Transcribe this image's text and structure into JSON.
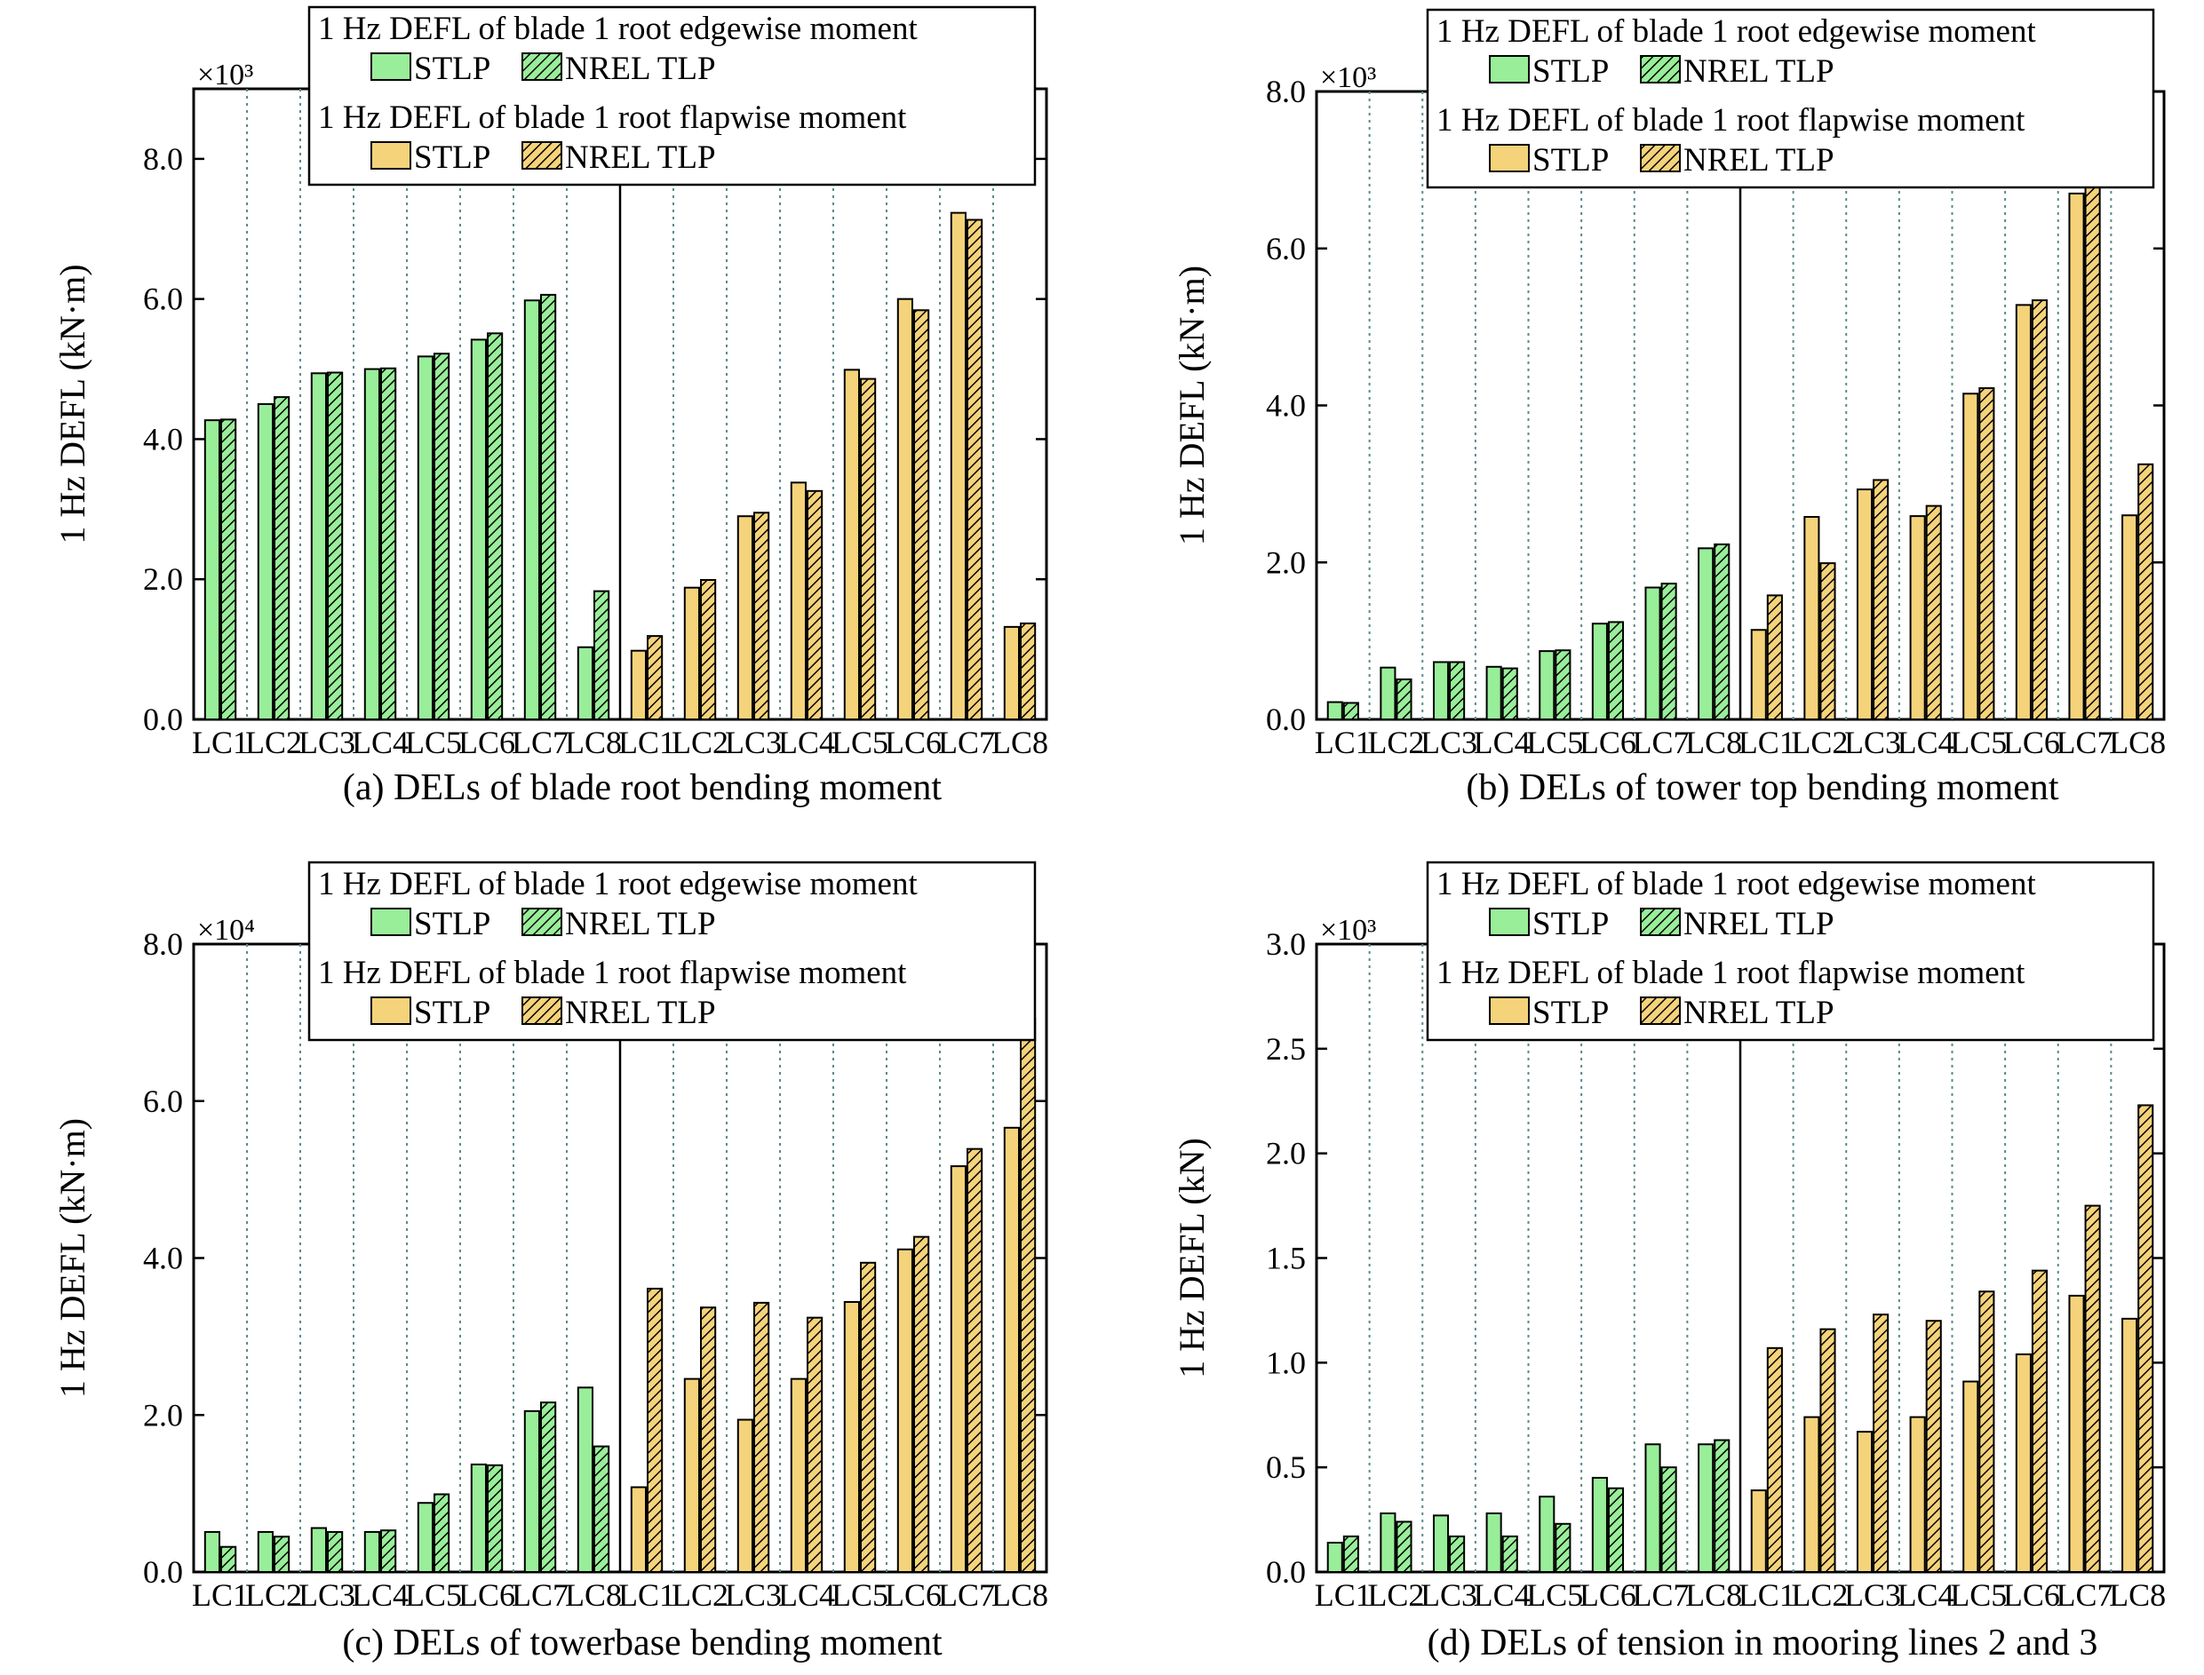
{
  "colors": {
    "stlp_edge": "#99ee99",
    "stlp_flap": "#f5d37a",
    "outline": "#000000",
    "gridline": "#5a8a8a"
  },
  "legend": {
    "edge_title": "1 Hz DEFL of blade 1 root edgewise moment",
    "flap_title": "1 Hz DEFL of blade 1 root flapwise moment",
    "stlp": "STLP",
    "nrel": "NREL TLP"
  },
  "chart_data": [
    {
      "type": "bar",
      "caption": "(a)  DELs of blade root bending moment",
      "ylabel": "1 Hz DEFL (kN·m)",
      "multiplier": "×10³",
      "ylim": [
        0,
        9.0
      ],
      "yticks": [
        "0.0",
        "2.0",
        "4.0",
        "6.0",
        "8.0"
      ],
      "categories": [
        "LC1",
        "LC2",
        "LC3",
        "LC4",
        "LC5",
        "LC6",
        "LC7",
        "LC8",
        "LC1",
        "LC2",
        "LC3",
        "LC4",
        "LC5",
        "LC6",
        "LC7",
        "LC8"
      ],
      "series": [
        {
          "name": "STLP",
          "values": [
            4.27,
            4.5,
            4.94,
            5.0,
            5.18,
            5.42,
            5.98,
            1.03,
            0.98,
            1.88,
            2.9,
            3.38,
            4.99,
            6.0,
            7.23,
            1.32
          ]
        },
        {
          "name": "NREL TLP",
          "values": [
            4.28,
            4.6,
            4.95,
            5.01,
            5.22,
            5.51,
            6.06,
            1.83,
            1.19,
            1.99,
            2.95,
            3.26,
            4.86,
            5.84,
            7.13,
            1.37
          ]
        }
      ]
    },
    {
      "type": "bar",
      "caption": "(b) DELs of tower top bending moment",
      "ylabel": "1 Hz DEFL (kN·m)",
      "multiplier": "×10³",
      "ylim": [
        0,
        8.0
      ],
      "yticks": [
        "0.0",
        "2.0",
        "4.0",
        "6.0",
        "8.0"
      ],
      "categories": [
        "LC1",
        "LC2",
        "LC3",
        "LC4",
        "LC5",
        "LC6",
        "LC7",
        "LC8",
        "LC1",
        "LC2",
        "LC3",
        "LC4",
        "LC5",
        "LC6",
        "LC7",
        "LC8"
      ],
      "series": [
        {
          "name": "STLP",
          "values": [
            0.22,
            0.66,
            0.73,
            0.67,
            0.87,
            1.22,
            1.68,
            2.18,
            1.14,
            2.58,
            2.93,
            2.59,
            4.15,
            5.28,
            6.7,
            2.6
          ]
        },
        {
          "name": "NREL TLP",
          "values": [
            0.21,
            0.51,
            0.73,
            0.65,
            0.88,
            1.24,
            1.73,
            2.23,
            1.58,
            1.99,
            3.05,
            2.72,
            4.22,
            5.34,
            6.82,
            3.25
          ]
        }
      ]
    },
    {
      "type": "bar",
      "caption": "(c)  DELs of towerbase bending moment",
      "ylabel": "1 Hz DEFL (kN·m)",
      "multiplier": "×10⁴",
      "ylim": [
        0,
        8.0
      ],
      "yticks": [
        "0.0",
        "2.0",
        "4.0",
        "6.0",
        "8.0"
      ],
      "categories": [
        "LC1",
        "LC2",
        "LC3",
        "LC4",
        "LC5",
        "LC6",
        "LC7",
        "LC8",
        "LC1",
        "LC2",
        "LC3",
        "LC4",
        "LC5",
        "LC6",
        "LC7",
        "LC8"
      ],
      "series": [
        {
          "name": "STLP",
          "values": [
            0.51,
            0.51,
            0.56,
            0.51,
            0.88,
            1.37,
            2.05,
            2.35,
            1.08,
            2.46,
            1.94,
            2.46,
            3.44,
            4.11,
            5.17,
            5.66
          ]
        },
        {
          "name": "NREL TLP",
          "values": [
            0.32,
            0.45,
            0.51,
            0.53,
            0.99,
            1.36,
            2.16,
            1.6,
            3.61,
            3.37,
            3.43,
            3.24,
            3.94,
            4.27,
            5.39,
            7.05
          ]
        }
      ]
    },
    {
      "type": "bar",
      "caption": "(d) DELs of tension in mooring lines 2 and 3",
      "ylabel": "1 Hz DEFL (kN)",
      "multiplier": "×10³",
      "ylim": [
        0,
        3.0
      ],
      "yticks": [
        "0.0",
        "0.5",
        "1.0",
        "1.5",
        "2.0",
        "2.5",
        "3.0"
      ],
      "categories": [
        "LC1",
        "LC2",
        "LC3",
        "LC4",
        "LC5",
        "LC6",
        "LC7",
        "LC8",
        "LC1",
        "LC2",
        "LC3",
        "LC4",
        "LC5",
        "LC6",
        "LC7",
        "LC8"
      ],
      "series": [
        {
          "name": "STLP",
          "values": [
            0.14,
            0.28,
            0.27,
            0.28,
            0.36,
            0.45,
            0.61,
            0.61,
            0.39,
            0.74,
            0.67,
            0.74,
            0.91,
            1.04,
            1.32,
            1.21
          ]
        },
        {
          "name": "NREL TLP",
          "values": [
            0.17,
            0.24,
            0.17,
            0.17,
            0.23,
            0.4,
            0.5,
            0.63,
            1.07,
            1.16,
            1.23,
            1.2,
            1.34,
            1.44,
            1.75,
            2.23
          ]
        }
      ]
    }
  ]
}
